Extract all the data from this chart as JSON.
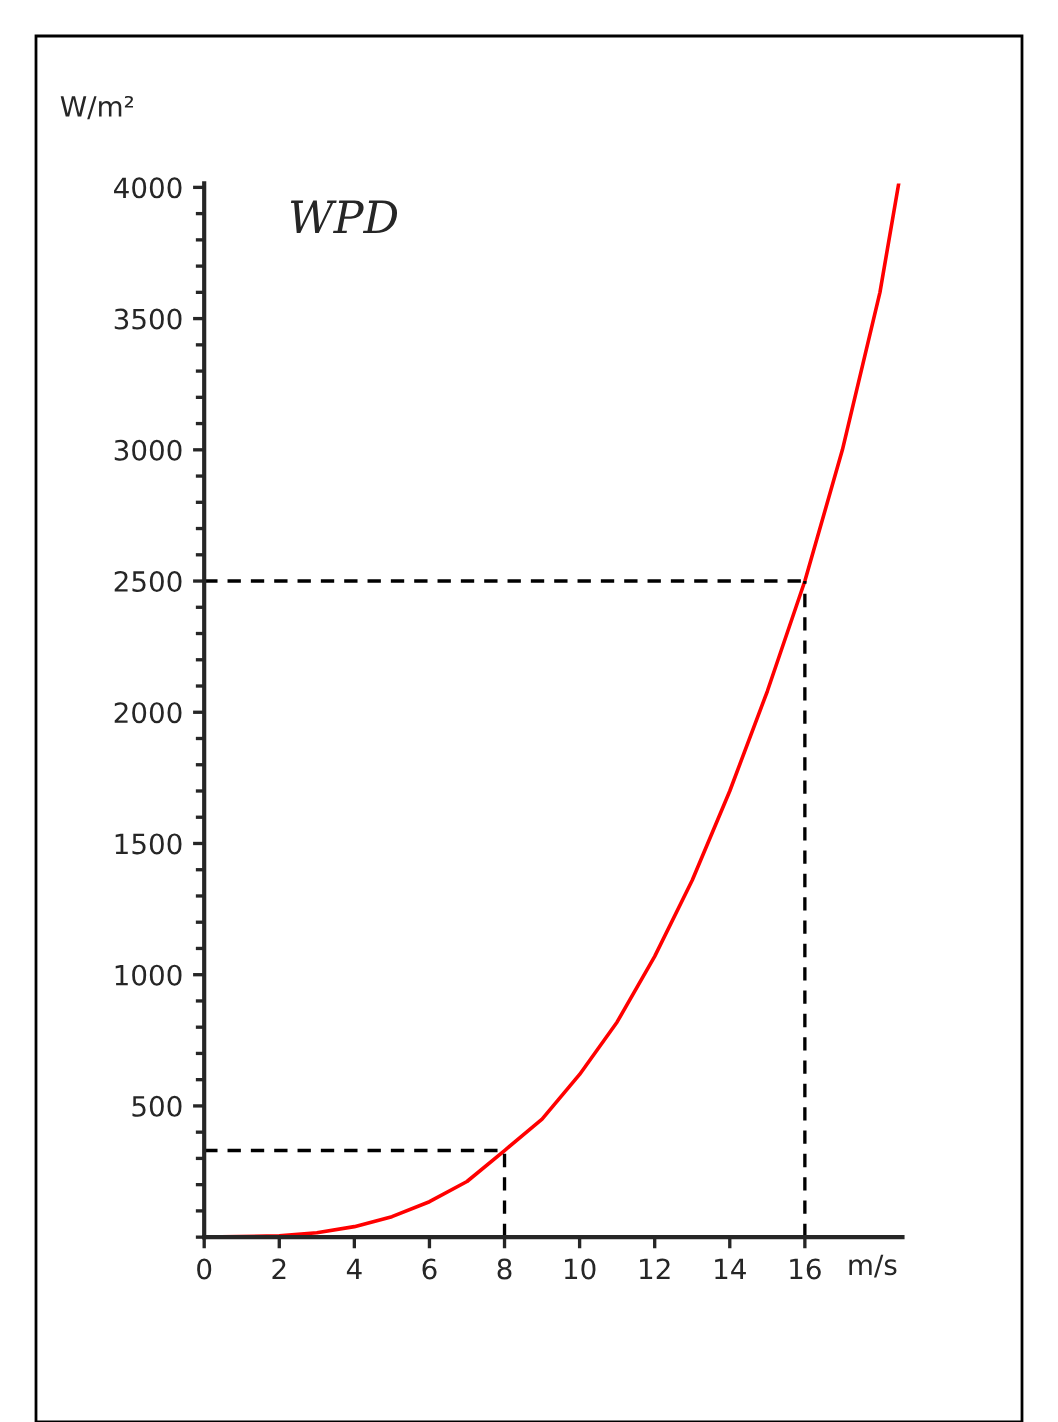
{
  "chart_data": {
    "type": "line",
    "title": "WPD",
    "xlabel": "m/s",
    "ylabel": "W/m²",
    "x": [
      0,
      2,
      3,
      4,
      5,
      6,
      7,
      8,
      9,
      10,
      11,
      12,
      13,
      14,
      15,
      16,
      17,
      18,
      18.5
    ],
    "series": [
      {
        "color": "#ff0000",
        "values": [
          0,
          5,
          17,
          40,
          78,
          135,
          212,
          330,
          450,
          620,
          820,
          1070,
          1360,
          1700,
          2080,
          2500,
          3000,
          3600,
          4015
        ]
      }
    ],
    "xlim": [
      0,
      18.6
    ],
    "ylim": [
      0,
      4015
    ],
    "xticks": [
      0,
      2,
      4,
      6,
      8,
      10,
      12,
      14,
      16
    ],
    "yticks": [
      {
        "value": 0,
        "label": null
      },
      {
        "value": 100,
        "label": null
      },
      {
        "value": 200,
        "label": null
      },
      {
        "value": 300,
        "label": null
      },
      {
        "value": 400,
        "label": null
      },
      500,
      {
        "value": 600,
        "label": null
      },
      {
        "value": 700,
        "label": null
      },
      {
        "value": 800,
        "label": null
      },
      {
        "value": 900,
        "label": null
      },
      1000,
      {
        "value": 1100,
        "label": null
      },
      {
        "value": 1200,
        "label": null
      },
      {
        "value": 1300,
        "label": null
      },
      {
        "value": 1400,
        "label": null
      },
      1500,
      {
        "value": 1600,
        "label": null
      },
      {
        "value": 1700,
        "label": null
      },
      {
        "value": 1800,
        "label": null
      },
      {
        "value": 1900,
        "label": null
      },
      2000,
      {
        "value": 2100,
        "label": null
      },
      {
        "value": 2200,
        "label": null
      },
      {
        "value": 2300,
        "label": null
      },
      {
        "value": 2400,
        "label": null
      },
      2500,
      {
        "value": 2600,
        "label": null
      },
      {
        "value": 2700,
        "label": null
      },
      {
        "value": 2800,
        "label": null
      },
      {
        "value": 2900,
        "label": null
      },
      3000,
      {
        "value": 3100,
        "label": null
      },
      {
        "value": 3200,
        "label": null
      },
      {
        "value": 3300,
        "label": null
      },
      {
        "value": 3400,
        "label": null
      },
      3500,
      {
        "value": 3600,
        "label": null
      },
      {
        "value": 3700,
        "label": null
      },
      {
        "value": 3800,
        "label": null
      },
      {
        "value": 3900,
        "label": null
      },
      4000
    ],
    "ref_lines": [
      {
        "axis": "x",
        "value": 8,
        "color": "#000000",
        "line_style": "dashed"
      },
      {
        "axis": "y",
        "value": 330,
        "color": "#000000",
        "line_style": "dashed"
      },
      {
        "axis": "x",
        "value": 16,
        "color": "#000000",
        "line_style": "dashed"
      },
      {
        "axis": "y",
        "value": 2500,
        "color": "#000000",
        "line_style": "dashed"
      }
    ],
    "grid": false,
    "legend": false,
    "marker": "none",
    "line_style": "solid"
  }
}
